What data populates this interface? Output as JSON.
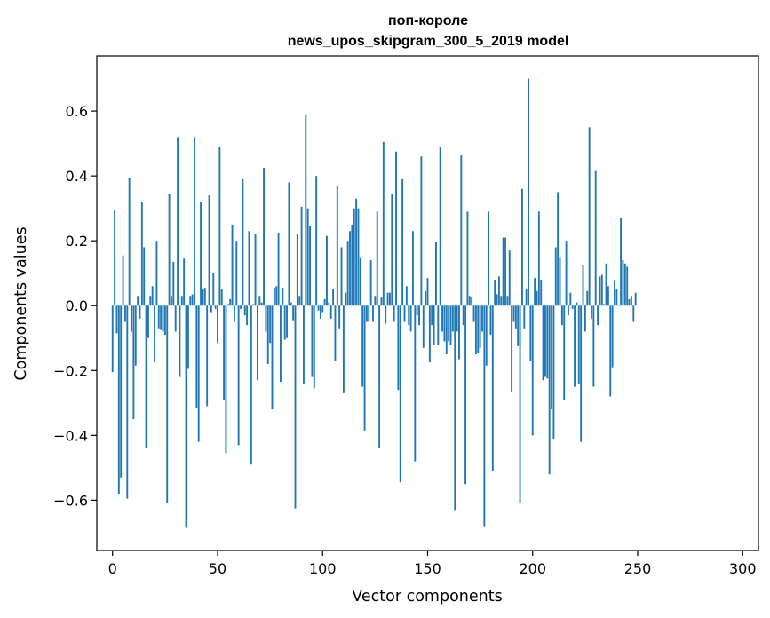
{
  "chart_data": {
    "type": "bar",
    "title_line1": "поп-короле",
    "title_line2": "news_upos_skipgram_300_5_2019 model",
    "xlabel": "Vector components",
    "ylabel": "Components values",
    "xlim": [
      -7.5,
      307.5
    ],
    "ylim": [
      -0.755,
      0.77
    ],
    "x_ticks": [
      0,
      50,
      100,
      150,
      200,
      250,
      300
    ],
    "x_tick_labels": [
      "0",
      "50",
      "100",
      "150",
      "200",
      "250",
      "300"
    ],
    "y_ticks": [
      -0.6,
      -0.4,
      -0.2,
      0.0,
      0.2,
      0.4,
      0.6
    ],
    "y_tick_labels": [
      "−0.6",
      "−0.4",
      "−0.2",
      "0.0",
      "0.2",
      "0.4",
      "0.6"
    ],
    "bar_color": "#1f77b4",
    "values": [
      -0.205,
      0.295,
      -0.085,
      -0.58,
      -0.53,
      0.155,
      -0.05,
      -0.595,
      0.395,
      -0.08,
      -0.35,
      -0.185,
      0.03,
      -0.04,
      0.32,
      0.18,
      -0.44,
      -0.1,
      0.03,
      0.06,
      -0.175,
      0.2,
      -0.07,
      -0.075,
      -0.08,
      -0.09,
      -0.61,
      0.345,
      0.03,
      0.135,
      -0.08,
      0.52,
      -0.22,
      0.03,
      0.145,
      -0.685,
      -0.195,
      0.03,
      0.035,
      0.52,
      -0.315,
      -0.42,
      0.32,
      0.05,
      0.055,
      -0.31,
      0.34,
      -0.02,
      0.1,
      -0.01,
      -0.115,
      0.49,
      0.05,
      -0.29,
      -0.455,
      0.005,
      0.02,
      0.25,
      -0.05,
      0.2,
      -0.43,
      -0.01,
      0.39,
      -0.03,
      -0.06,
      0.23,
      -0.49,
      0.005,
      0.22,
      -0.23,
      0.03,
      0.01,
      0.425,
      -0.08,
      -0.18,
      -0.115,
      -0.32,
      0.055,
      0.06,
      0.225,
      -0.235,
      0.055,
      -0.105,
      -0.1,
      0.38,
      0.01,
      -0.045,
      -0.625,
      0.22,
      0.03,
      0.305,
      -0.24,
      0.59,
      0.3,
      0.245,
      -0.22,
      -0.255,
      0.4,
      -0.015,
      -0.04,
      -0.02,
      0.02,
      0.215,
      0.01,
      -0.04,
      0.05,
      -0.17,
      0.37,
      -0.07,
      0.18,
      -0.27,
      0.04,
      0.2,
      0.23,
      0.25,
      0.3,
      0.33,
      0.3,
      0.15,
      -0.25,
      -0.385,
      -0.05,
      -0.05,
      0.14,
      -0.05,
      0.03,
      0.29,
      -0.44,
      0.025,
      0.505,
      -0.055,
      0.04,
      0.04,
      0.345,
      -0.05,
      0.475,
      -0.26,
      -0.545,
      0.39,
      -0.05,
      0.06,
      -0.06,
      -0.08,
      0.23,
      -0.48,
      -0.03,
      -0.06,
      0.46,
      -0.13,
      0.045,
      0.085,
      -0.175,
      -0.06,
      -0.12,
      0.195,
      -0.12,
      0.49,
      -0.08,
      -0.11,
      -0.15,
      -0.11,
      -0.12,
      -0.08,
      -0.63,
      -0.08,
      -0.165,
      0.465,
      -0.06,
      -0.55,
      0.29,
      0.03,
      0.025,
      -0.05,
      -0.15,
      -0.145,
      -0.13,
      -0.08,
      -0.68,
      -0.185,
      0.29,
      -0.09,
      -0.51,
      0.08,
      0.035,
      0.09,
      0.03,
      0.21,
      0.21,
      0.03,
      0.17,
      -0.265,
      -0.05,
      -0.07,
      -0.125,
      -0.61,
      0.36,
      -0.07,
      0.05,
      0.7,
      -0.17,
      -0.4,
      0.085,
      0.045,
      0.29,
      0.08,
      -0.23,
      -0.22,
      -0.225,
      -0.52,
      -0.32,
      -0.41,
      0.18,
      0.35,
      0.15,
      -0.06,
      -0.29,
      0.2,
      -0.03,
      0.04,
      -0.01,
      -0.25,
      0.01,
      -0.24,
      -0.42,
      0.125,
      -0.08,
      0.045,
      0.55,
      -0.04,
      -0.25,
      0.415,
      -0.06,
      0.09,
      0.095,
      0.005,
      0.13,
      0.06,
      -0.28,
      -0.19,
      0.08,
      0.05,
      0.0,
      0.27,
      0.14,
      0.13,
      0.12,
      0.02,
      0.03,
      -0.05,
      0.04
    ]
  }
}
